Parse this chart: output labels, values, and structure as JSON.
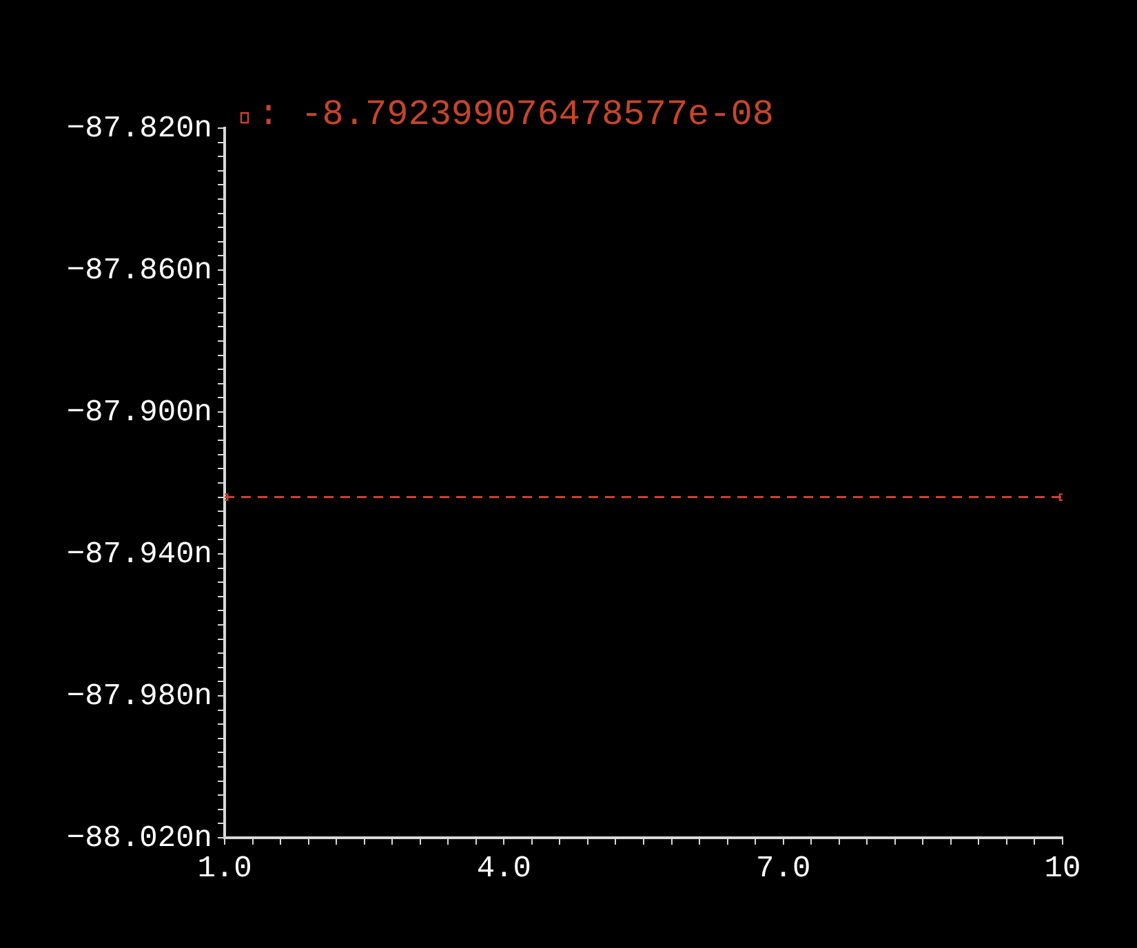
{
  "chart_data": {
    "type": "line",
    "x": [
      1,
      10
    ],
    "series": [
      {
        "name": ": -8.792399076478577e-08",
        "color": "#c8452a",
        "values": [
          -87.924,
          -87.924
        ]
      }
    ],
    "xlim": [
      1,
      10
    ],
    "xticks": [
      {
        "value": 1,
        "label": "1.0"
      },
      {
        "value": 1.3,
        "label": null
      },
      {
        "value": 1.6,
        "label": null
      },
      {
        "value": 1.9,
        "label": null
      },
      {
        "value": 2.2,
        "label": null
      },
      {
        "value": 2.5,
        "label": null
      },
      {
        "value": 2.8,
        "label": null
      },
      {
        "value": 3.1,
        "label": null
      },
      {
        "value": 3.4,
        "label": null
      },
      {
        "value": 3.7,
        "label": null
      },
      {
        "value": 4,
        "label": "4.0"
      },
      {
        "value": 4.3,
        "label": null
      },
      {
        "value": 4.6,
        "label": null
      },
      {
        "value": 4.9,
        "label": null
      },
      {
        "value": 5.2,
        "label": null
      },
      {
        "value": 5.5,
        "label": null
      },
      {
        "value": 5.8,
        "label": null
      },
      {
        "value": 6.1,
        "label": null
      },
      {
        "value": 6.4,
        "label": null
      },
      {
        "value": 6.7,
        "label": null
      },
      {
        "value": 7,
        "label": "7.0"
      },
      {
        "value": 7.3,
        "label": null
      },
      {
        "value": 7.6,
        "label": null
      },
      {
        "value": 7.9,
        "label": null
      },
      {
        "value": 8.2,
        "label": null
      },
      {
        "value": 8.5,
        "label": null
      },
      {
        "value": 8.8,
        "label": null
      },
      {
        "value": 9.1,
        "label": null
      },
      {
        "value": 9.4,
        "label": null
      },
      {
        "value": 9.7,
        "label": null
      },
      10
    ],
    "ylim": [
      -88.02,
      -87.82
    ],
    "yticks": [
      {
        "value": -88.02,
        "label": "−88.020n"
      },
      {
        "value": -88.016,
        "label": null
      },
      {
        "value": -88.012,
        "label": null
      },
      {
        "value": -88.008,
        "label": null
      },
      {
        "value": -88.004,
        "label": null
      },
      {
        "value": -88,
        "label": null
      },
      {
        "value": -87.996,
        "label": null
      },
      {
        "value": -87.992,
        "label": null
      },
      {
        "value": -87.988,
        "label": null
      },
      {
        "value": -87.984,
        "label": null
      },
      {
        "value": -87.98,
        "label": "−87.980n"
      },
      {
        "value": -87.976,
        "label": null
      },
      {
        "value": -87.972,
        "label": null
      },
      {
        "value": -87.968,
        "label": null
      },
      {
        "value": -87.964,
        "label": null
      },
      {
        "value": -87.96,
        "label": null
      },
      {
        "value": -87.956,
        "label": null
      },
      {
        "value": -87.952,
        "label": null
      },
      {
        "value": -87.948,
        "label": null
      },
      {
        "value": -87.944,
        "label": null
      },
      {
        "value": -87.94,
        "label": "−87.940n"
      },
      {
        "value": -87.936,
        "label": null
      },
      {
        "value": -87.932,
        "label": null
      },
      {
        "value": -87.928,
        "label": null
      },
      {
        "value": -87.924,
        "label": null
      },
      {
        "value": -87.92,
        "label": null
      },
      {
        "value": -87.916,
        "label": null
      },
      {
        "value": -87.912,
        "label": null
      },
      {
        "value": -87.908,
        "label": null
      },
      {
        "value": -87.904,
        "label": null
      },
      {
        "value": -87.9,
        "label": "−87.900n"
      },
      {
        "value": -87.896,
        "label": null
      },
      {
        "value": -87.892,
        "label": null
      },
      {
        "value": -87.888,
        "label": null
      },
      {
        "value": -87.884,
        "label": null
      },
      {
        "value": -87.88,
        "label": null
      },
      {
        "value": -87.876,
        "label": null
      },
      {
        "value": -87.872,
        "label": null
      },
      {
        "value": -87.868,
        "label": null
      },
      {
        "value": -87.864,
        "label": null
      },
      {
        "value": -87.86,
        "label": "−87.860n"
      },
      {
        "value": -87.856,
        "label": null
      },
      {
        "value": -87.852,
        "label": null
      },
      {
        "value": -87.848,
        "label": null
      },
      {
        "value": -87.844,
        "label": null
      },
      {
        "value": -87.84,
        "label": null
      },
      {
        "value": -87.836,
        "label": null
      },
      {
        "value": -87.832,
        "label": null
      },
      {
        "value": -87.828,
        "label": null
      },
      {
        "value": -87.824,
        "label": null
      },
      {
        "value": -87.82,
        "label": "−87.820n"
      }
    ],
    "legend": "top left",
    "marker": "square",
    "line_style": "dashed",
    "grid": false
  }
}
